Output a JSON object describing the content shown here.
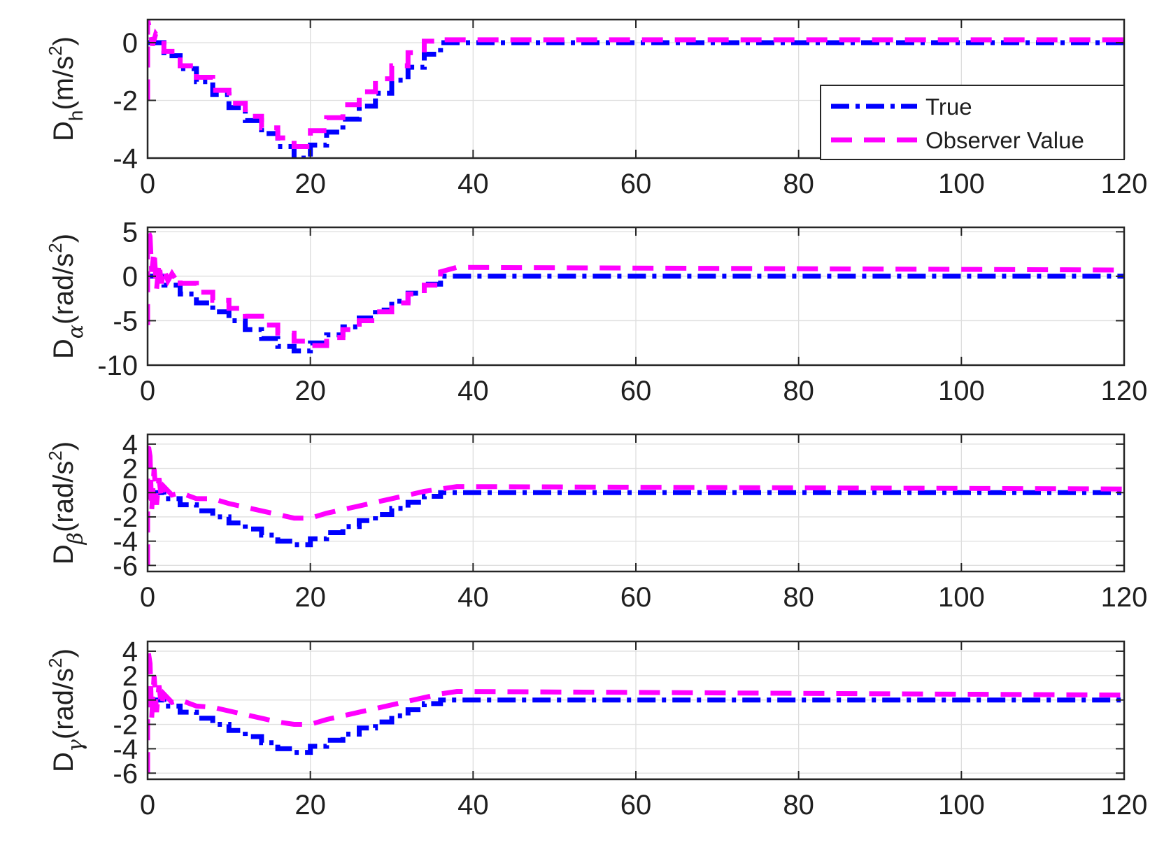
{
  "chart_data": [
    {
      "type": "line",
      "ylabel": {
        "base": "D",
        "sub": "h",
        "sub_greek": false,
        "unit_pre": "(m/s",
        "sup": "2",
        "unit_post": ")"
      },
      "xlim": [
        0,
        120
      ],
      "ylim": [
        -4,
        0.8
      ],
      "xticks": [
        0,
        20,
        40,
        60,
        80,
        100,
        120
      ],
      "yticks": [
        0,
        -2,
        -4
      ],
      "grid": true,
      "legend": {
        "placement": "bottom-right",
        "entries": [
          "True",
          "Observer Value"
        ]
      },
      "series": [
        {
          "name": "True",
          "color": "#0000FF",
          "style": "dash-dot",
          "x": [
            0,
            2,
            2,
            4,
            4,
            6,
            6,
            8,
            8,
            10,
            10,
            12,
            12,
            14,
            14,
            16,
            16,
            18,
            18,
            20,
            20,
            22,
            22,
            24,
            24,
            26,
            26,
            28,
            28,
            30,
            30,
            32,
            32,
            34,
            34,
            36,
            36,
            120
          ],
          "y": [
            0,
            0,
            -0.45,
            -0.45,
            -0.9,
            -0.9,
            -1.35,
            -1.35,
            -1.8,
            -1.8,
            -2.25,
            -2.25,
            -2.7,
            -2.7,
            -3.15,
            -3.15,
            -3.6,
            -3.6,
            -4,
            -4,
            -3.55,
            -3.55,
            -3.1,
            -3.1,
            -2.65,
            -2.65,
            -2.2,
            -2.2,
            -1.75,
            -1.75,
            -1.3,
            -1.3,
            -0.85,
            -0.85,
            -0.4,
            -0.4,
            0,
            0
          ]
        },
        {
          "name": "Observer Value",
          "color": "#FF00FF",
          "style": "dashed",
          "x": [
            0,
            0,
            0.3,
            0.6,
            1,
            1.5,
            2,
            2,
            4,
            4,
            6,
            6,
            8,
            8,
            10,
            10,
            12,
            12,
            14,
            14,
            16,
            16,
            18,
            18,
            20,
            20,
            22,
            22,
            24,
            24,
            26,
            26,
            28,
            28,
            30,
            30,
            32,
            32,
            34,
            34,
            36,
            36,
            120
          ],
          "y": [
            -2,
            0.8,
            0.4,
            -0.1,
            0.3,
            0.1,
            0.1,
            -0.3,
            -0.3,
            -0.8,
            -0.8,
            -1.2,
            -1.2,
            -1.65,
            -1.65,
            -2.1,
            -2.1,
            -2.55,
            -2.55,
            -2.95,
            -2.95,
            -3.3,
            -3.3,
            -3.6,
            -3.6,
            -3.05,
            -3.05,
            -2.6,
            -2.6,
            -2.15,
            -2.15,
            -1.7,
            -1.7,
            -1.25,
            -1.25,
            -0.8,
            -0.8,
            -0.35,
            -0.35,
            0.05,
            0.05,
            0.1,
            0.1
          ]
        }
      ]
    },
    {
      "type": "line",
      "ylabel": {
        "base": "D",
        "sub": "α",
        "sub_greek": true,
        "unit_pre": "(rad/s",
        "sup": "2",
        "unit_post": ")"
      },
      "xlim": [
        0,
        120
      ],
      "ylim": [
        -10,
        5.5
      ],
      "xticks": [
        0,
        20,
        40,
        60,
        80,
        100,
        120
      ],
      "yticks": [
        5,
        0,
        -5,
        -10
      ],
      "grid": true,
      "series": [
        {
          "name": "True",
          "color": "#0000FF",
          "style": "dash-dot",
          "x": [
            0,
            2,
            2,
            4,
            4,
            6,
            6,
            8,
            8,
            10,
            10,
            12,
            12,
            14,
            14,
            16,
            16,
            18,
            18,
            20,
            20,
            22,
            22,
            24,
            24,
            26,
            26,
            28,
            28,
            30,
            30,
            32,
            32,
            34,
            34,
            36,
            36,
            120
          ],
          "y": [
            0,
            0,
            -1,
            -1,
            -2,
            -2,
            -3,
            -3,
            -4,
            -4,
            -5,
            -5,
            -6,
            -6,
            -7,
            -7,
            -7.9,
            -7.9,
            -8.4,
            -8.4,
            -7.5,
            -7.5,
            -6.6,
            -6.6,
            -5.7,
            -5.7,
            -4.7,
            -4.7,
            -3.8,
            -3.8,
            -2.8,
            -2.8,
            -1.9,
            -1.9,
            -0.9,
            -0.9,
            0,
            0
          ]
        },
        {
          "name": "Observer Value",
          "color": "#FF00FF",
          "style": "dashed",
          "x": [
            0,
            0,
            0.3,
            0.5,
            0.8,
            1.1,
            1.4,
            1.7,
            2,
            2.5,
            3,
            3.5,
            4,
            4,
            6,
            6,
            8,
            8,
            10,
            10,
            12,
            12,
            14,
            14,
            16,
            16,
            18,
            18,
            20,
            20,
            22,
            22,
            24,
            24,
            26,
            26,
            28,
            28,
            30,
            30,
            32,
            32,
            34,
            34,
            36,
            36,
            38,
            120
          ],
          "y": [
            -5.5,
            5.2,
            4.5,
            0.5,
            2.8,
            -1.5,
            1.5,
            -0.8,
            0.8,
            -0.5,
            0.3,
            -0.4,
            0,
            -0.8,
            -0.8,
            -1.8,
            -1.8,
            -2.7,
            -2.7,
            -3.6,
            -3.6,
            -4.5,
            -4.5,
            -5.5,
            -5.5,
            -6.4,
            -6.4,
            -7.3,
            -7.3,
            -7.8,
            -7.8,
            -6.9,
            -6.9,
            -6.0,
            -6.0,
            -5.0,
            -5.0,
            -4.0,
            -4.0,
            -3.0,
            -3.0,
            -2.0,
            -2.0,
            -1.0,
            -1.0,
            0.5,
            1.0,
            0.7
          ]
        }
      ]
    },
    {
      "type": "line",
      "ylabel": {
        "base": "D",
        "sub": "β",
        "sub_greek": true,
        "unit_pre": "(rad/s",
        "sup": "2",
        "unit_post": ")"
      },
      "xlim": [
        0,
        120
      ],
      "ylim": [
        -6.5,
        4.8
      ],
      "xticks": [
        0,
        20,
        40,
        60,
        80,
        100,
        120
      ],
      "yticks": [
        4,
        2,
        0,
        -2,
        -4,
        -6
      ],
      "grid": true,
      "series": [
        {
          "name": "True",
          "color": "#0000FF",
          "style": "dash-dot",
          "x": [
            0,
            2,
            2,
            4,
            4,
            6,
            6,
            8,
            8,
            10,
            10,
            12,
            12,
            14,
            14,
            16,
            16,
            18,
            18,
            20,
            20,
            22,
            22,
            24,
            24,
            26,
            26,
            28,
            28,
            30,
            30,
            32,
            32,
            34,
            34,
            36,
            36,
            120
          ],
          "y": [
            0,
            0,
            -0.5,
            -0.5,
            -1,
            -1,
            -1.5,
            -1.5,
            -2,
            -2,
            -2.5,
            -2.5,
            -3,
            -3,
            -3.5,
            -3.5,
            -4,
            -4,
            -4.3,
            -4.3,
            -3.8,
            -3.8,
            -3.3,
            -3.3,
            -2.8,
            -2.8,
            -2.3,
            -2.3,
            -1.8,
            -1.8,
            -1.3,
            -1.3,
            -0.8,
            -0.8,
            -0.3,
            -0.3,
            0,
            0
          ]
        },
        {
          "name": "Observer Value",
          "color": "#FF00FF",
          "style": "dashed",
          "x": [
            0,
            0,
            0.3,
            0.5,
            0.8,
            1.1,
            1.4,
            1.7,
            2,
            3,
            4,
            6,
            8,
            10,
            12,
            14,
            16,
            18,
            20,
            22,
            24,
            26,
            28,
            30,
            32,
            34,
            36,
            38,
            120
          ],
          "y": [
            -6,
            4.3,
            3.0,
            -1.5,
            2.0,
            -1.0,
            1.2,
            -0.5,
            0.5,
            -0.2,
            0,
            -0.5,
            -0.5,
            -0.9,
            -1.2,
            -1.5,
            -1.8,
            -2.1,
            -2.1,
            -1.7,
            -1.4,
            -1.1,
            -0.8,
            -0.5,
            -0.2,
            0.1,
            0.3,
            0.5,
            0.3
          ]
        }
      ]
    },
    {
      "type": "line",
      "ylabel": {
        "base": "D",
        "sub": "γ",
        "sub_greek": true,
        "unit_pre": "(rad/s",
        "sup": "2",
        "unit_post": ")"
      },
      "xlim": [
        0,
        120
      ],
      "ylim": [
        -6.5,
        4.8
      ],
      "xticks": [
        0,
        20,
        40,
        60,
        80,
        100,
        120
      ],
      "yticks": [
        4,
        2,
        0,
        -2,
        -4,
        -6
      ],
      "grid": true,
      "series": [
        {
          "name": "True",
          "color": "#0000FF",
          "style": "dash-dot",
          "x": [
            0,
            2,
            2,
            4,
            4,
            6,
            6,
            8,
            8,
            10,
            10,
            12,
            12,
            14,
            14,
            16,
            16,
            18,
            18,
            20,
            20,
            22,
            22,
            24,
            24,
            26,
            26,
            28,
            28,
            30,
            30,
            32,
            32,
            34,
            34,
            36,
            36,
            120
          ],
          "y": [
            0,
            0,
            -0.5,
            -0.5,
            -1,
            -1,
            -1.5,
            -1.5,
            -2,
            -2,
            -2.5,
            -2.5,
            -3,
            -3,
            -3.5,
            -3.5,
            -4,
            -4,
            -4.3,
            -4.3,
            -3.8,
            -3.8,
            -3.3,
            -3.3,
            -2.8,
            -2.8,
            -2.3,
            -2.3,
            -1.8,
            -1.8,
            -1.3,
            -1.3,
            -0.8,
            -0.8,
            -0.3,
            -0.3,
            0,
            0
          ]
        },
        {
          "name": "Observer Value",
          "color": "#FF00FF",
          "style": "dashed",
          "x": [
            0,
            0,
            0.3,
            0.5,
            0.8,
            1.1,
            1.4,
            1.7,
            2,
            3,
            4,
            6,
            8,
            10,
            12,
            14,
            16,
            18,
            20,
            22,
            24,
            26,
            28,
            30,
            32,
            34,
            36,
            38,
            120
          ],
          "y": [
            -6,
            4.3,
            3.0,
            -1.5,
            2.0,
            -1.0,
            1.2,
            -0.5,
            0.5,
            -0.2,
            0,
            -0.5,
            -0.6,
            -0.9,
            -1.2,
            -1.5,
            -1.8,
            -2.0,
            -2.0,
            -1.6,
            -1.3,
            -1.0,
            -0.7,
            -0.4,
            -0.1,
            0.2,
            0.5,
            0.7,
            0.4
          ]
        }
      ]
    }
  ]
}
